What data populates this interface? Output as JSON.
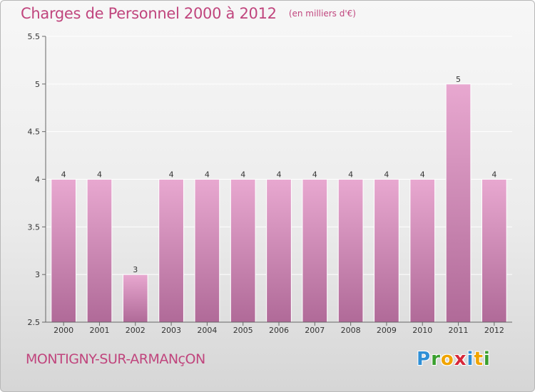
{
  "header": {
    "title": "Charges de Personnel 2000 à 2012",
    "subtitle": "(en milliers d'€)"
  },
  "footer": {
    "commune": "MONTIGNY-SUR-ARMANçON",
    "logo": "Proxiti",
    "logo_letters": [
      {
        "char": "P",
        "color": "#2e8fd6"
      },
      {
        "char": "r",
        "color": "#3a9f2e"
      },
      {
        "char": "o",
        "color": "#f0a400"
      },
      {
        "char": "x",
        "color": "#d7283a"
      },
      {
        "char": "i",
        "color": "#2e8fd6"
      },
      {
        "char": "t",
        "color": "#f0a400"
      },
      {
        "char": "i",
        "color": "#3a9f2e"
      }
    ]
  },
  "colors": {
    "bar_light": "#e8a8d0",
    "bar_dark": "#b06a98",
    "axis": "#666666",
    "grid": "#ffffff"
  },
  "chart_data": {
    "type": "bar",
    "title": "Charges de Personnel 2000 à 2012",
    "subtitle": "(en milliers d'€)",
    "categories": [
      "2000",
      "2001",
      "2002",
      "2003",
      "2004",
      "2005",
      "2006",
      "2007",
      "2008",
      "2009",
      "2010",
      "2011",
      "2012"
    ],
    "values": [
      4,
      4,
      3,
      4,
      4,
      4,
      4,
      4,
      4,
      4,
      4,
      5,
      4
    ],
    "value_labels": [
      "4",
      "4",
      "3",
      "4",
      "4",
      "4",
      "4",
      "4",
      "4",
      "4",
      "4",
      "5",
      "4"
    ],
    "ylim": [
      2.5,
      5.5
    ],
    "yticks": [
      2.5,
      3,
      3.5,
      4,
      4.5,
      5,
      5.5
    ],
    "ytick_labels": [
      "2.5",
      "3",
      "3.5",
      "4",
      "4.5",
      "5",
      "5.5"
    ],
    "xlabel": "",
    "ylabel": "",
    "grid": true,
    "legend": "none"
  }
}
